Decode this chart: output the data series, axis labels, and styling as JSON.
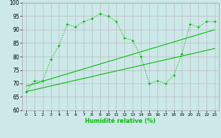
{
  "xlabel": "Humidité relative (%)",
  "xlim": [
    -0.5,
    23.5
  ],
  "ylim": [
    60,
    100
  ],
  "xticks": [
    0,
    1,
    2,
    3,
    4,
    5,
    6,
    7,
    8,
    9,
    10,
    11,
    12,
    13,
    14,
    15,
    16,
    17,
    18,
    19,
    20,
    21,
    22,
    23
  ],
  "yticks": [
    60,
    65,
    70,
    75,
    80,
    85,
    90,
    95,
    100
  ],
  "bg_color": "#cce8e8",
  "grid_color": "#bbbbbb",
  "line_color": "#00bb00",
  "line1": {
    "x": [
      0,
      1,
      2,
      3,
      4,
      5,
      6,
      7,
      8,
      9,
      10,
      11,
      12,
      13,
      14,
      15,
      16,
      17,
      18,
      19,
      20,
      21,
      22,
      23
    ],
    "y": [
      67,
      71,
      71,
      79,
      84,
      92,
      91,
      93,
      94,
      96,
      95,
      93,
      87,
      86,
      80,
      70,
      71,
      70,
      73,
      81,
      92,
      91,
      93,
      93
    ]
  },
  "line2_x": [
    0,
    23
  ],
  "line2_y": [
    69,
    90
  ],
  "line3_x": [
    0,
    23
  ],
  "line3_y": [
    67,
    83
  ]
}
